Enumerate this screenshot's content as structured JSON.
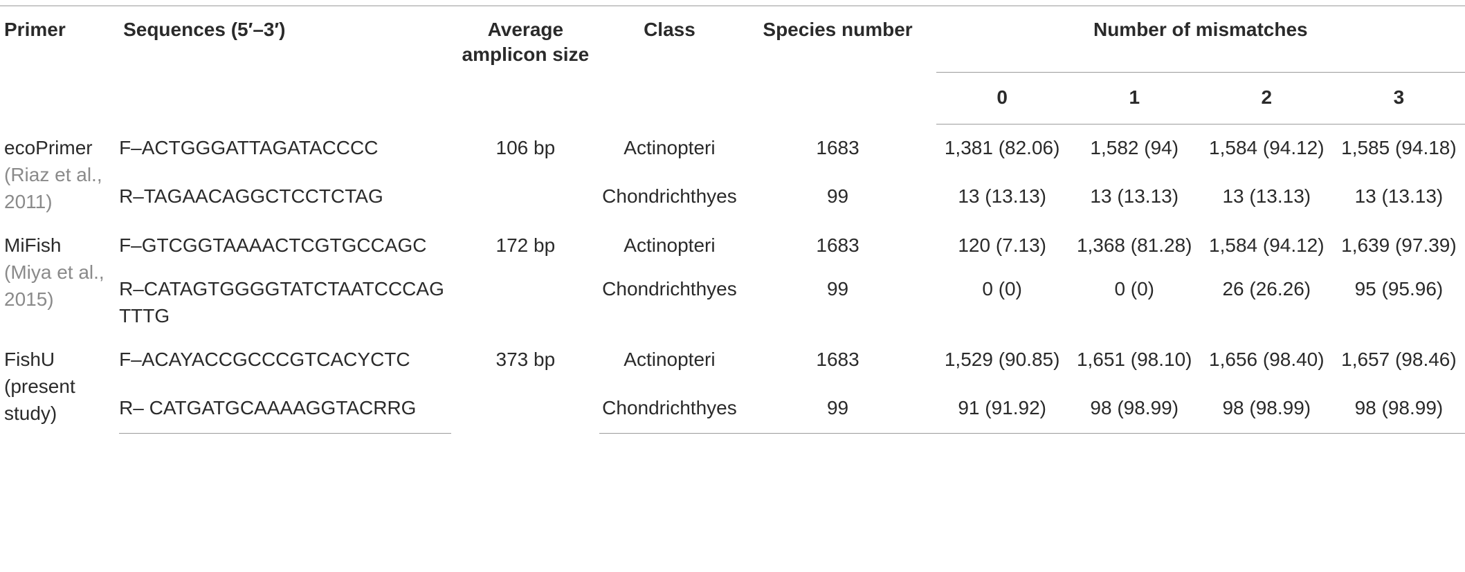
{
  "headers": {
    "primer": "Primer",
    "sequences": "Sequences (5′–3′)",
    "amplicon_line1": "Average",
    "amplicon_line2": "amplicon size",
    "class": "Class",
    "species": "Species number",
    "mismatches": "Number of mismatches",
    "mm": [
      "0",
      "1",
      "2",
      "3"
    ]
  },
  "groups": [
    {
      "primer": "ecoPrimer",
      "ref": "(Riaz et al., 2011)",
      "amplicon": "106 bp",
      "rows": [
        {
          "seq": "F–ACTGGGATTAGATACCCC",
          "class": "Actinopteri",
          "species": "1683",
          "mm": [
            "1,381 (82.06)",
            "1,582 (94)",
            "1,584 (94.12)",
            "1,585 (94.18)"
          ]
        },
        {
          "seq": "R–TAGAACAGGCTCCTCTAG",
          "class": "Chondrichthyes",
          "species": "99",
          "mm": [
            "13 (13.13)",
            "13 (13.13)",
            "13 (13.13)",
            "13 (13.13)"
          ]
        }
      ]
    },
    {
      "primer": "MiFish",
      "ref": "(Miya et al., 2015)",
      "amplicon": "172 bp",
      "rows": [
        {
          "seq": "F–GTCGGTAAAACTCGTGCCAGC",
          "class": "Actinopteri",
          "species": "1683",
          "mm": [
            "120 (7.13)",
            "1,368 (81.28)",
            "1,584 (94.12)",
            "1,639 (97.39)"
          ]
        },
        {
          "seq": "R–CATAGTGGGGTATCTAATCCCAGTTTG",
          "class": "Chondrichthyes",
          "species": "99",
          "mm": [
            "0 (0)",
            "0 (0)",
            "26 (26.26)",
            "95 (95.96)"
          ]
        }
      ]
    },
    {
      "primer": "FishU",
      "ref": "(present study)",
      "amplicon": "373 bp",
      "rows": [
        {
          "seq": "F–ACAYACCGCCCGTCACYCTC",
          "class": "Actinopteri",
          "species": "1683",
          "mm": [
            "1,529 (90.85)",
            "1,651 (98.10)",
            "1,656 (98.40)",
            "1,657 (98.46)"
          ]
        },
        {
          "seq": "R– CATGATGCAAAAGGTACRRG",
          "class": "Chondrichthyes",
          "species": "99",
          "mm": [
            "91 (91.92)",
            "98 (98.99)",
            "98 (98.99)",
            "98 (98.99)"
          ]
        }
      ]
    }
  ]
}
